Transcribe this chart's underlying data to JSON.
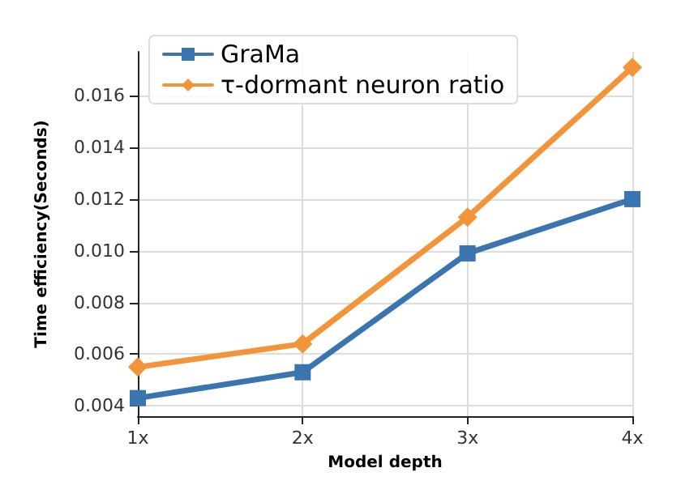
{
  "chart_data": {
    "type": "line",
    "xlabel": "Model depth",
    "ylabel": "Time efficiency(Seconds)",
    "categories": [
      "1x",
      "2x",
      "3x",
      "4x"
    ],
    "series": [
      {
        "name": "GraMa",
        "color": "#3a75b0",
        "marker": "square",
        "values": [
          0.0043,
          0.0053,
          0.0099,
          0.012
        ]
      },
      {
        "name": "τ-dormant neuron ratio",
        "color": "#f2953a",
        "marker": "diamond",
        "values": [
          0.0055,
          0.0064,
          0.0113,
          0.0171
        ]
      }
    ],
    "ylim": [
      0.0036,
      0.0177
    ],
    "yticks": [
      0.004,
      0.006,
      0.008,
      {
        "value": 0.01,
        "label": "0.010"
      },
      0.012,
      0.014,
      0.016
    ],
    "grid": true,
    "legend": "top left",
    "line_style": "solid"
  }
}
